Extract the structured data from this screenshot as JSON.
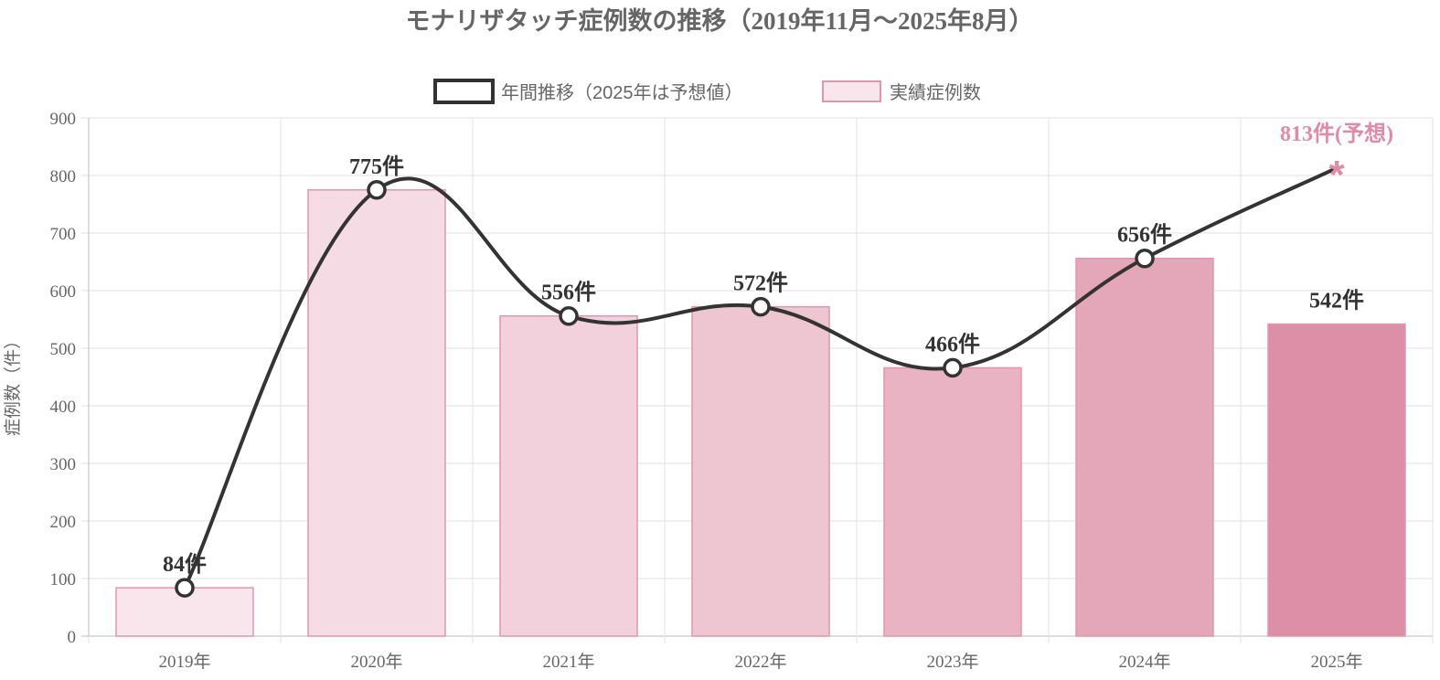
{
  "chart_data": {
    "type": "bar",
    "title": "モナリザタッチ症例数の推移（2019年11月〜2025年8月）",
    "categories": [
      "2019年",
      "2020年",
      "2021年",
      "2022年",
      "2023年",
      "2024年",
      "2025年"
    ],
    "ylabel": "症例数（件）",
    "xlabel": "",
    "ylim": [
      0,
      900
    ],
    "yticks": [
      "0",
      "100",
      "200",
      "300",
      "400",
      "500",
      "600",
      "700",
      "800",
      "900"
    ],
    "grid": true,
    "legend_position": "top",
    "legend": [
      "年間推移（2025年は予想値）",
      "実績症例数"
    ],
    "series": [
      {
        "name": "実績症例数",
        "type": "bar",
        "values": [
          84,
          775,
          556,
          572,
          466,
          656,
          542
        ],
        "labels": [
          "",
          "",
          "",
          "",
          "",
          "",
          "542件"
        ],
        "colors": [
          "#f8e6ec",
          "#f5dce4",
          "#f2d1dc",
          "#eec6d2",
          "#e9b3c3",
          "#e4a6b9",
          "#de8fa8"
        ],
        "border_color": "#e196ae"
      },
      {
        "name": "年間推移（2025年は予想値）",
        "type": "line",
        "values": [
          84,
          775,
          556,
          572,
          466,
          656,
          813
        ],
        "labels": [
          "84件",
          "775件",
          "556件",
          "572件",
          "466件",
          "656件",
          "813件(予想)"
        ],
        "color": "#333333",
        "forecast_color": "#e08aa6"
      }
    ]
  }
}
